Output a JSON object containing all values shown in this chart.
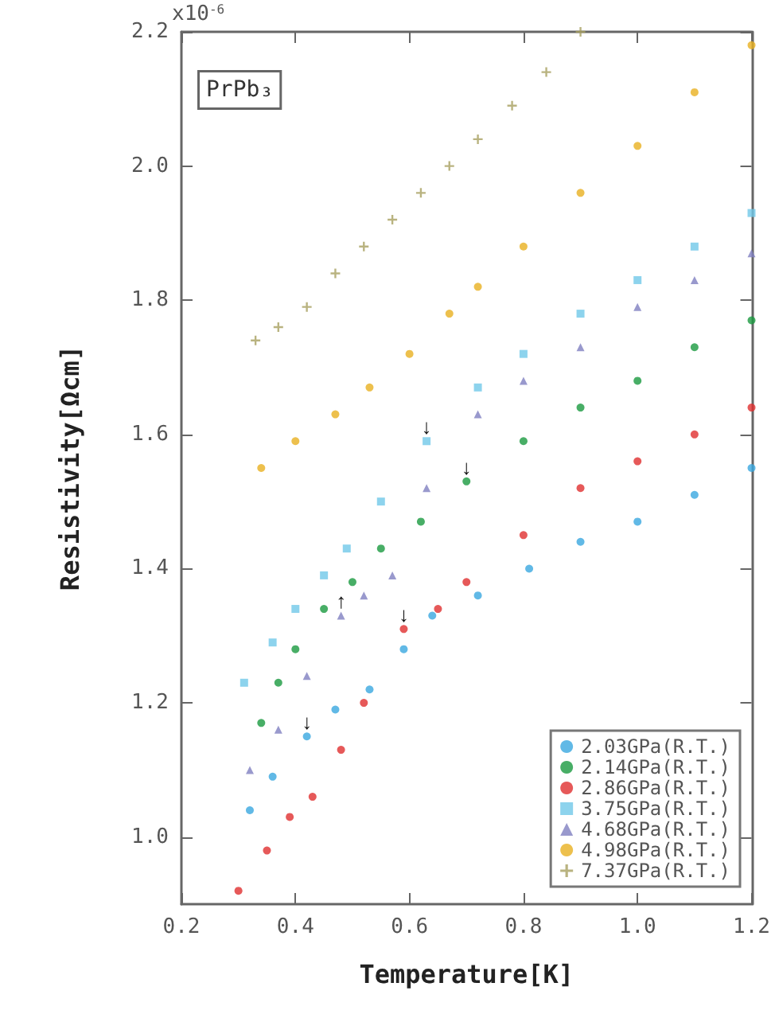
{
  "chart_data": {
    "type": "scatter",
    "xlabel": "Temperature[K]",
    "ylabel": "Resistivity[Ωcm]",
    "annotations": [
      "PrPb₃",
      "x10$^{-6}$",
      {
        "text": "↓",
        "x": 0.63,
        "y": 1.59
      },
      {
        "text": "↓",
        "x": 0.7,
        "y": 1.53
      },
      {
        "text": "↑",
        "x": 0.48,
        "y": 1.33
      },
      {
        "text": "↓",
        "x": 0.59,
        "y": 1.31
      },
      {
        "text": "↓",
        "x": 0.42,
        "y": 1.15
      }
    ],
    "xlim": [
      0.2,
      1.2
    ],
    "xticks": [
      {
        "value": 0.2,
        "label": "0.2"
      },
      {
        "value": 0.4,
        "label": "0.4"
      },
      {
        "value": 0.6,
        "label": "0.6"
      },
      {
        "value": 0.8,
        "label": "0.8"
      },
      {
        "value": 1.0,
        "label": "1.0"
      },
      {
        "value": 1.2,
        "label": "1.2"
      }
    ],
    "ylim": [
      0.9,
      2.2
    ],
    "yticks": [
      {
        "value": 1.0,
        "label": "1.0"
      },
      {
        "value": 1.2,
        "label": "1.2"
      },
      {
        "value": 1.4,
        "label": "1.4"
      },
      {
        "value": 1.6,
        "label": "1.6"
      },
      {
        "value": 1.8,
        "label": "1.8"
      },
      {
        "value": 2.0,
        "label": "2.0"
      },
      {
        "value": 2.2,
        "label": "2.2"
      }
    ],
    "grid": false,
    "legend": "bottom right",
    "series": [
      {
        "name": "2.03GPa(R.T.)",
        "color": "#3aa8e0",
        "marker": "circle",
        "x": [
          0.32,
          0.36,
          0.42,
          0.47,
          0.53,
          0.59,
          0.64,
          0.72,
          0.81,
          0.9,
          1.0,
          1.1,
          1.2
        ],
        "values": [
          1.04,
          1.09,
          1.15,
          1.19,
          1.22,
          1.28,
          1.33,
          1.36,
          1.4,
          1.44,
          1.47,
          1.51,
          1.55
        ]
      },
      {
        "name": "2.14GPa(R.T.)",
        "color": "#1a9a40",
        "marker": "circle",
        "x": [
          0.34,
          0.37,
          0.4,
          0.45,
          0.5,
          0.55,
          0.62,
          0.7,
          0.8,
          0.9,
          1.0,
          1.1,
          1.2
        ],
        "values": [
          1.17,
          1.23,
          1.28,
          1.34,
          1.38,
          1.43,
          1.47,
          1.53,
          1.59,
          1.64,
          1.68,
          1.73,
          1.77
        ]
      },
      {
        "name": "2.86GPa(R.T.)",
        "color": "#e03030",
        "marker": "circle",
        "x": [
          0.3,
          0.35,
          0.39,
          0.43,
          0.48,
          0.52,
          0.59,
          0.65,
          0.7,
          0.8,
          0.9,
          1.0,
          1.1,
          1.2
        ],
        "values": [
          0.92,
          0.98,
          1.03,
          1.06,
          1.13,
          1.2,
          1.31,
          1.34,
          1.38,
          1.45,
          1.52,
          1.56,
          1.6,
          1.64
        ]
      },
      {
        "name": "3.75GPa(R.T.)",
        "color": "#70c8e8",
        "marker": "square",
        "x": [
          0.31,
          0.36,
          0.4,
          0.45,
          0.49,
          0.55,
          0.63,
          0.72,
          0.8,
          0.9,
          1.0,
          1.1,
          1.2
        ],
        "values": [
          1.23,
          1.29,
          1.34,
          1.39,
          1.43,
          1.5,
          1.59,
          1.67,
          1.72,
          1.78,
          1.83,
          1.88,
          1.93
        ]
      },
      {
        "name": "4.68GPa(R.T.)",
        "color": "#8080c0",
        "marker": "triangle",
        "x": [
          0.32,
          0.37,
          0.42,
          0.48,
          0.52,
          0.57,
          0.63,
          0.72,
          0.8,
          0.9,
          1.0,
          1.1,
          1.2
        ],
        "values": [
          1.1,
          1.16,
          1.24,
          1.33,
          1.36,
          1.39,
          1.52,
          1.63,
          1.68,
          1.73,
          1.79,
          1.83,
          1.87
        ]
      },
      {
        "name": "4.98GPa(R.T.)",
        "color": "#e8b020",
        "marker": "circle",
        "x": [
          0.34,
          0.4,
          0.47,
          0.53,
          0.6,
          0.67,
          0.72,
          0.8,
          0.9,
          1.0,
          1.1,
          1.2
        ],
        "values": [
          1.55,
          1.59,
          1.63,
          1.67,
          1.72,
          1.78,
          1.82,
          1.88,
          1.96,
          2.03,
          2.11,
          2.18
        ]
      },
      {
        "name": "7.37GPa(R.T.)",
        "color": "#a8a060",
        "marker": "cross",
        "x": [
          0.33,
          0.37,
          0.42,
          0.47,
          0.52,
          0.57,
          0.62,
          0.67,
          0.72,
          0.78,
          0.84,
          0.9
        ],
        "values": [
          1.74,
          1.76,
          1.79,
          1.84,
          1.88,
          1.92,
          1.96,
          2.0,
          2.04,
          2.09,
          2.14,
          2.2
        ]
      }
    ]
  }
}
